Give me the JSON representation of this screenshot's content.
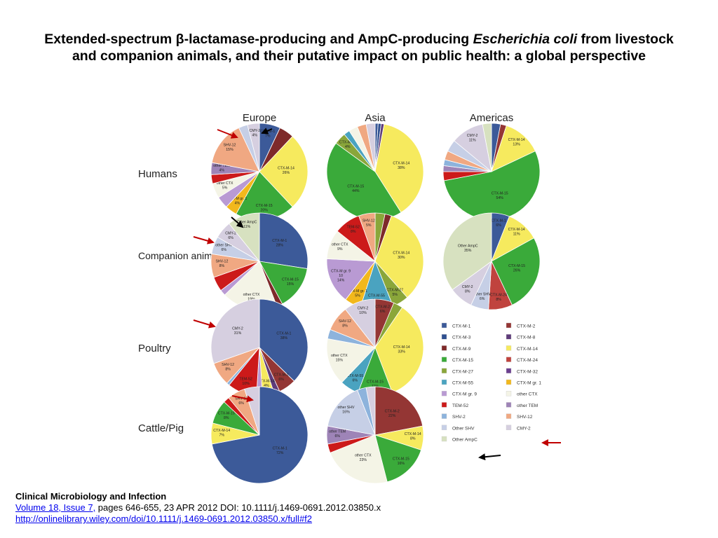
{
  "title": {
    "part1": "Extended-spectrum β-lactamase-producing and AmpC-producing ",
    "italic": "Escherichia coli",
    "part2": " from livestock and companion animals, and their putative impact on public health: a global perspective"
  },
  "regions": [
    "Europe",
    "Asia",
    "Americas"
  ],
  "hosts": [
    "Humans",
    "Companion animals",
    "Poultry",
    "Cattle/Pig"
  ],
  "footer": {
    "journal": "Clinical Microbiology and Infection",
    "volume_link": "Volume 18, Issue 7,",
    "citation_rest": " pages 646-655, 23 APR 2012 DOI: 10.1111/j.1469-0691.2012.03850.x",
    "url": "http://onlinelibrary.wiley.com/doi/10.1111/j.1469-0691.2012.03850.x/full#f2"
  },
  "colors": {
    "arrow_red": "#c00000",
    "arrow_black": "#000000"
  },
  "chart_data": {
    "type": "pie",
    "legend_position": "right",
    "categories": [
      {
        "name": "CTX-M-1",
        "color": "#3c5a99"
      },
      {
        "name": "CTX-M-2",
        "color": "#943634"
      },
      {
        "name": "CTX-M-3",
        "color": "#2f4f8f"
      },
      {
        "name": "CTX-M-8",
        "color": "#5f3c7a"
      },
      {
        "name": "CTX-M-9",
        "color": "#7e2a2a"
      },
      {
        "name": "CTX-M-14",
        "color": "#f6ea5e"
      },
      {
        "name": "CTX-M-15",
        "color": "#3aaa3a"
      },
      {
        "name": "CTX-M-24",
        "color": "#c0433e"
      },
      {
        "name": "CTX-M-27",
        "color": "#8aa63a"
      },
      {
        "name": "CTX-M-32",
        "color": "#6b3f8f"
      },
      {
        "name": "CTX-M-55",
        "color": "#4aa3c0"
      },
      {
        "name": "CTX-M gr. 1",
        "color": "#f2b81c"
      },
      {
        "name": "CTX-M gr. 9",
        "color": "#b99ad3"
      },
      {
        "name": "other CTX",
        "color": "#f4f4e6"
      },
      {
        "name": "TEM-52",
        "color": "#cc1a1a"
      },
      {
        "name": "other TEM",
        "color": "#9e84b7"
      },
      {
        "name": "SHV-2",
        "color": "#8db3dc"
      },
      {
        "name": "SHV-12",
        "color": "#f0a882"
      },
      {
        "name": "Other SHV",
        "color": "#c6cfe6"
      },
      {
        "name": "CMY-2",
        "color": "#d6cfe0"
      },
      {
        "name": "Other AmpC",
        "color": "#d7e1c0"
      }
    ],
    "pies": [
      {
        "region": "Europe",
        "host": "Humans",
        "slices": [
          {
            "cat": "CTX-M-1",
            "value": 7,
            "label": "CTX-M-1\n7%"
          },
          {
            "cat": "CTX-M-9",
            "value": 5,
            "label": ""
          },
          {
            "cat": "CTX-M-14",
            "value": 26,
            "label": "CTX-M-14\n26%"
          },
          {
            "cat": "CTX-M-15",
            "value": 20,
            "label": "CTX-M-15\n20%"
          },
          {
            "cat": "CTX-M gr. 1",
            "value": 4,
            "label": "CTX-M gr. 1\n4%"
          },
          {
            "cat": "CTX-M gr. 9",
            "value": 4,
            "label": ""
          },
          {
            "cat": "other CTX",
            "value": 5,
            "label": "other CTX\n5%"
          },
          {
            "cat": "TEM-52",
            "value": 3,
            "label": ""
          },
          {
            "cat": "other TEM",
            "value": 4,
            "label": "other TEM\n4%"
          },
          {
            "cat": "SHV-12",
            "value": 15,
            "label": "SHV-12\n15%"
          },
          {
            "cat": "Other SHV",
            "value": 3,
            "label": ""
          },
          {
            "cat": "CMY-2",
            "value": 4,
            "label": "CMY-2\n4%"
          }
        ]
      },
      {
        "region": "Asia",
        "host": "Humans",
        "slices": [
          {
            "cat": "CTX-M-1",
            "value": 1,
            "label": ""
          },
          {
            "cat": "CTX-M-3",
            "value": 1,
            "label": ""
          },
          {
            "cat": "CTX-M-8",
            "value": 1,
            "label": ""
          },
          {
            "cat": "CTX-M-14",
            "value": 38,
            "label": "CTX-M-14\n38%"
          },
          {
            "cat": "CTX-M-15",
            "value": 44,
            "label": "CTX-M-15\n44%"
          },
          {
            "cat": "CTX-M-27",
            "value": 4,
            "label": "CTX-M-27\n4%"
          },
          {
            "cat": "CTX-M-55",
            "value": 2,
            "label": ""
          },
          {
            "cat": "other CTX",
            "value": 3,
            "label": ""
          },
          {
            "cat": "SHV-12",
            "value": 3,
            "label": ""
          },
          {
            "cat": "CMY-2",
            "value": 3,
            "label": ""
          }
        ]
      },
      {
        "region": "Americas",
        "host": "Humans",
        "slices": [
          {
            "cat": "CTX-M-1",
            "value": 3,
            "label": ""
          },
          {
            "cat": "CTX-M-2",
            "value": 2,
            "label": ""
          },
          {
            "cat": "CTX-M-14",
            "value": 13,
            "label": "CTX-M-14\n13%"
          },
          {
            "cat": "CTX-M-15",
            "value": 54,
            "label": "CTX-M-15\n54%"
          },
          {
            "cat": "TEM-52",
            "value": 3,
            "label": ""
          },
          {
            "cat": "other TEM",
            "value": 2,
            "label": ""
          },
          {
            "cat": "SHV-2",
            "value": 2,
            "label": ""
          },
          {
            "cat": "SHV-12",
            "value": 3,
            "label": ""
          },
          {
            "cat": "Other SHV",
            "value": 4,
            "label": ""
          },
          {
            "cat": "CMY-2",
            "value": 11,
            "label": "CMY-2\n11%"
          },
          {
            "cat": "Other AmpC",
            "value": 3,
            "label": ""
          }
        ]
      },
      {
        "region": "Europe",
        "host": "Companion animals",
        "slices": [
          {
            "cat": "CTX-M-1",
            "value": 28,
            "label": "CTX-M-1\n28%"
          },
          {
            "cat": "CTX-M-15",
            "value": 15,
            "label": "CTX-M-15\n15%"
          },
          {
            "cat": "CTX-M-9",
            "value": 2,
            "label": ""
          },
          {
            "cat": "other CTX",
            "value": 19,
            "label": "other CTX\n19%"
          },
          {
            "cat": "CTX-M gr. 9",
            "value": 2,
            "label": ""
          },
          {
            "cat": "TEM-52",
            "value": 5,
            "label": ""
          },
          {
            "cat": "SHV-12",
            "value": 8,
            "label": "SHV-12\n8%"
          },
          {
            "cat": "Other SHV",
            "value": 6,
            "label": "other SHV\n6%"
          },
          {
            "cat": "CMY-2",
            "value": 6,
            "label": "CMY-2\n6%"
          },
          {
            "cat": "Other AmpC",
            "value": 11,
            "label": "Other AmpC\n11%"
          }
        ]
      },
      {
        "region": "Asia",
        "host": "Companion animals",
        "slices": [
          {
            "cat": "CTX-M-27",
            "value": 3,
            "label": ""
          },
          {
            "cat": "CTX-M-9",
            "value": 2,
            "label": ""
          },
          {
            "cat": "CTX-M-14",
            "value": 30,
            "label": "CTX-M-14\n30%"
          },
          {
            "cat": "CTX-M-27",
            "value": 5,
            "label": "CTX-M-27\n5%"
          },
          {
            "cat": "CTX-M-55",
            "value": 10,
            "label": "CTX-M-55\n10%"
          },
          {
            "cat": "CTX-M gr. 1",
            "value": 5,
            "label": "CTX-M gr. 1\n5%"
          },
          {
            "cat": "CTX-M gr. 9",
            "value": 14,
            "label": "CTX-M gr. 9\n10\n14%"
          },
          {
            "cat": "other CTX",
            "value": 9,
            "label": "other CTX\n9%"
          },
          {
            "cat": "TEM-52",
            "value": 8,
            "label": "TEM-52\n8%"
          },
          {
            "cat": "SHV-12",
            "value": 5,
            "label": "SHV-12\n5%"
          }
        ]
      },
      {
        "region": "Americas",
        "host": "Companion animals",
        "slices": [
          {
            "cat": "CTX-M-1",
            "value": 6,
            "label": "CTX-M-1\n6%"
          },
          {
            "cat": "CTX-M-14",
            "value": 11,
            "label": "CTX-M-14\n11%"
          },
          {
            "cat": "CTX-M-15",
            "value": 26,
            "label": "CTX-M-15\n26%"
          },
          {
            "cat": "CTX-M-24",
            "value": 8,
            "label": "CTX-M-24\n8%"
          },
          {
            "cat": "Other SHV",
            "value": 6,
            "label": "other SHV\n6%"
          },
          {
            "cat": "CMY-2",
            "value": 8,
            "label": "CMY-2\n8%"
          },
          {
            "cat": "Other AmpC",
            "value": 35,
            "label": "Other AmpC\n35%"
          }
        ]
      },
      {
        "region": "Europe",
        "host": "Poultry",
        "slices": [
          {
            "cat": "CTX-M-1",
            "value": 38,
            "label": "CTX-M-1\n38%"
          },
          {
            "cat": "CTX-M-2",
            "value": 6,
            "label": "CTX-M-2\n6%"
          },
          {
            "cat": "CTX-M-8",
            "value": 2,
            "label": ""
          },
          {
            "cat": "CTX-M-14",
            "value": 4,
            "label": "CTX-M-14\n4%"
          },
          {
            "cat": "CTX-M gr. 9",
            "value": 2,
            "label": ""
          },
          {
            "cat": "TEM-52",
            "value": 10,
            "label": "TEM-52\n10%"
          },
          {
            "cat": "SHV-2",
            "value": 1,
            "label": ""
          },
          {
            "cat": "SHV-12",
            "value": 8,
            "label": "SHV-12\n8%"
          },
          {
            "cat": "CMY-2",
            "value": 31,
            "label": "CMY-2\n31%"
          }
        ]
      },
      {
        "region": "Asia",
        "host": "Poultry",
        "slices": [
          {
            "cat": "CTX-M-2",
            "value": 6,
            "label": "CTX-M-2\n6%"
          },
          {
            "cat": "CTX-M-27",
            "value": 3,
            "label": ""
          },
          {
            "cat": "CTX-M-14",
            "value": 33,
            "label": "CTX-M-14\n33%"
          },
          {
            "cat": "CTX-M-15",
            "value": 11,
            "label": "CTX-M-15\n11%"
          },
          {
            "cat": "CTX-M-55",
            "value": 6,
            "label": "CTX-M-55\n6%"
          },
          {
            "cat": "other CTX",
            "value": 15,
            "label": "other CTX\n15%"
          },
          {
            "cat": "SHV-2",
            "value": 3,
            "label": ""
          },
          {
            "cat": "SHV-12",
            "value": 8,
            "label": "SHV-12\n8%"
          },
          {
            "cat": "CMY-2",
            "value": 10,
            "label": "CMY-2\n10%"
          }
        ]
      },
      {
        "region": "Europe",
        "host": "Cattle/Pig",
        "slices": [
          {
            "cat": "CTX-M-1",
            "value": 72,
            "label": "CTX-M-1\n72%"
          },
          {
            "cat": "CTX-M-14",
            "value": 7,
            "label": "CTX-M-14\n7%"
          },
          {
            "cat": "CTX-M-15",
            "value": 8,
            "label": "CTX-M-15\n8%"
          },
          {
            "cat": "TEM-52",
            "value": 2,
            "label": ""
          },
          {
            "cat": "SHV-12",
            "value": 6,
            "label": "SHV-12\n6%"
          },
          {
            "cat": "CMY-2",
            "value": 5,
            "label": ""
          }
        ]
      },
      {
        "region": "Asia",
        "host": "Cattle/Pig",
        "slices": [
          {
            "cat": "CTX-M-2",
            "value": 22,
            "label": "CTX-M-2\n22%"
          },
          {
            "cat": "CTX-M-14",
            "value": 8,
            "label": "CTX-M-14\n8%"
          },
          {
            "cat": "CTX-M-15",
            "value": 16,
            "label": "CTX-M-15\n16%"
          },
          {
            "cat": "other CTX",
            "value": 23,
            "label": "other CTX\n23%"
          },
          {
            "cat": "TEM-52",
            "value": 3,
            "label": ""
          },
          {
            "cat": "other TEM",
            "value": 6,
            "label": "other TEM\n6%"
          },
          {
            "cat": "Other SHV",
            "value": 16,
            "label": "other SHV\n16%"
          },
          {
            "cat": "SHV-2",
            "value": 3,
            "label": ""
          },
          {
            "cat": "CMY-2",
            "value": 3,
            "label": ""
          }
        ]
      }
    ],
    "legend": [
      [
        "CTX-M-1",
        "CTX-M-2"
      ],
      [
        "CTX-M-3",
        "CTX-M-8"
      ],
      [
        "CTX-M-9",
        "CTX-M-14"
      ],
      [
        "CTX-M-15",
        "CTX-M-24"
      ],
      [
        "CTX-M-27",
        "CTX-M-32"
      ],
      [
        "CTX-M-55",
        "CTX-M gr. 1"
      ],
      [
        "CTX-M gr. 9",
        "other CTX"
      ],
      [
        "TEM-52",
        "other TEM"
      ],
      [
        "SHV-2",
        "SHV-12"
      ],
      [
        "Other SHV",
        "CMY-2"
      ],
      [
        "Other AmpC",
        ""
      ]
    ]
  }
}
